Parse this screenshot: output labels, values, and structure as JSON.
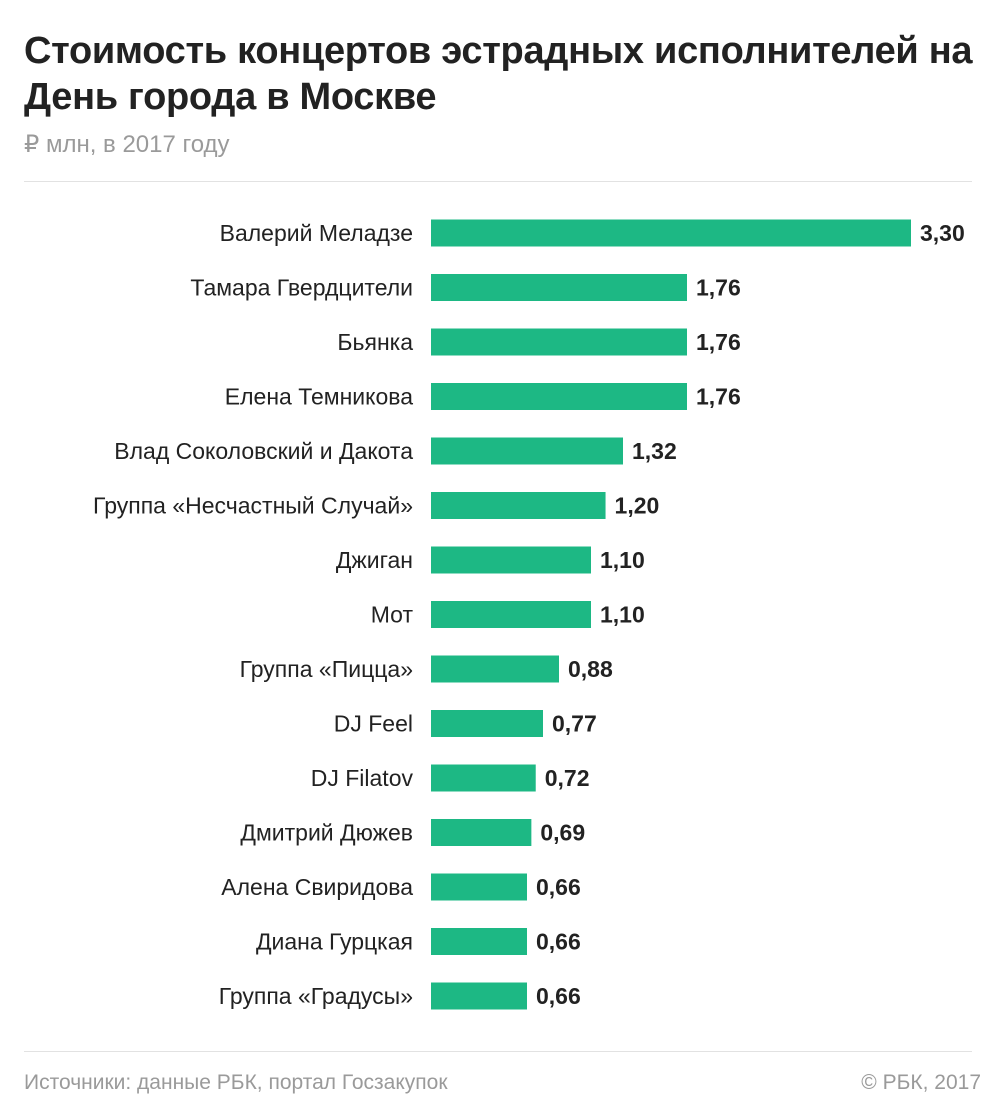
{
  "header": {
    "title": "Стоимость концертов эстрадных исполнителей на День города в Москве",
    "subtitle": "₽ млн, в 2017 году"
  },
  "footer": {
    "source": "Источники: данные РБК, портал Госзакупок",
    "copyright": "© РБК, 2017"
  },
  "colors": {
    "bar": "#1db884",
    "label": "#222222",
    "value": "#222222"
  },
  "chart_data": {
    "type": "bar",
    "orientation": "horizontal",
    "categories": [
      "Валерий Меладзе",
      "Тамара Гвердцители",
      "Бьянка",
      "Елена Темникова",
      "Влад Соколовский и Дакота",
      "Группа «Несчастный Случай»",
      "Джиган",
      "Мот",
      "Группа «Пицца»",
      "DJ Feel",
      "DJ Filatov",
      "Дмитрий Дюжев",
      "Алена Свиридова",
      "Диана Гурцкая",
      "Группа «Градусы»"
    ],
    "values": [
      3.3,
      1.76,
      1.76,
      1.76,
      1.32,
      1.2,
      1.1,
      1.1,
      0.88,
      0.77,
      0.72,
      0.69,
      0.66,
      0.66,
      0.66
    ],
    "value_labels": [
      "3,30",
      "1,76",
      "1,76",
      "1,76",
      "1,32",
      "1,20",
      "1,10",
      "1,10",
      "0,88",
      "0,77",
      "0,72",
      "0,69",
      "0,66",
      "0,66",
      "0,66"
    ],
    "xlim": [
      0,
      3.3
    ],
    "grid": false,
    "legend": "none"
  }
}
